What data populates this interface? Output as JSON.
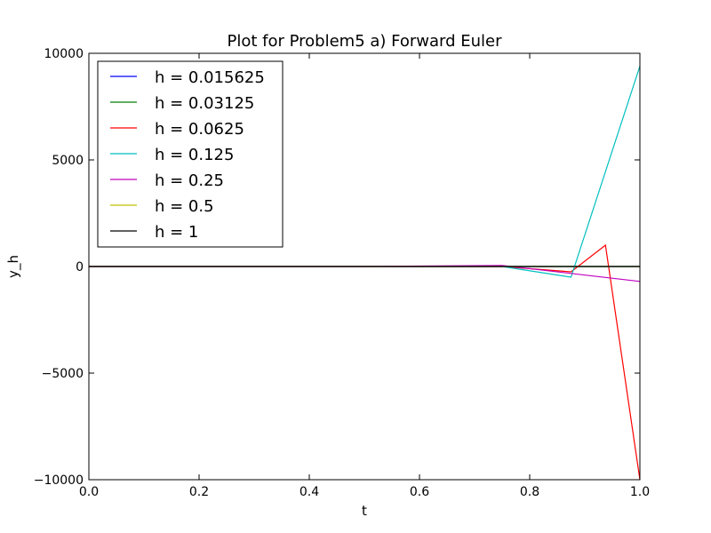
{
  "chart_data": {
    "type": "line",
    "title": "Plot for Problem5 a) Forward Euler",
    "xlabel": "t",
    "ylabel": "y_h",
    "xlim": [
      0.0,
      1.0
    ],
    "ylim": [
      -10000,
      10000
    ],
    "xticks": [
      0.0,
      0.2,
      0.4,
      0.6,
      0.8,
      1.0
    ],
    "xtick_labels": [
      "0.0",
      "0.2",
      "0.4",
      "0.6",
      "0.8",
      "1.0"
    ],
    "yticks": [
      -10000,
      -5000,
      0,
      5000,
      10000
    ],
    "ytick_labels": [
      "−10000",
      "−5000",
      "0",
      "5000",
      "10000"
    ],
    "grid": false,
    "legend_position": "top-left",
    "series": [
      {
        "name": "h = 0.015625",
        "color": "#0000ff",
        "x": [
          0.0,
          0.5,
          0.75,
          0.875,
          0.9375,
          1.0
        ],
        "y": [
          0,
          0,
          0,
          0,
          0,
          0
        ]
      },
      {
        "name": "h = 0.03125",
        "color": "#008000",
        "x": [
          0.0,
          0.5,
          0.75,
          0.875,
          0.9375,
          1.0
        ],
        "y": [
          0,
          0,
          0,
          0,
          0,
          0
        ]
      },
      {
        "name": "h = 0.0625",
        "color": "#ff0000",
        "x": [
          0.0,
          0.5,
          0.75,
          0.875,
          0.9375,
          1.0
        ],
        "y": [
          0,
          0,
          0,
          -250,
          1000,
          -10000
        ]
      },
      {
        "name": "h = 0.125",
        "color": "#00bfbf",
        "x": [
          0.0,
          0.125,
          0.25,
          0.375,
          0.5,
          0.625,
          0.75,
          0.875,
          1.0
        ],
        "y": [
          0,
          0,
          0,
          0,
          0,
          0,
          0,
          -500,
          9400
        ]
      },
      {
        "name": "h = 0.25",
        "color": "#bf00bf",
        "x": [
          0.0,
          0.25,
          0.5,
          0.75,
          1.0
        ],
        "y": [
          0,
          0,
          0,
          50,
          -700
        ]
      },
      {
        "name": "h = 0.5",
        "color": "#bfbf00",
        "x": [
          0.0,
          0.5,
          1.0
        ],
        "y": [
          0,
          0,
          0
        ]
      },
      {
        "name": "h = 1",
        "color": "#000000",
        "x": [
          0.0,
          1.0
        ],
        "y": [
          0,
          0
        ]
      }
    ]
  }
}
